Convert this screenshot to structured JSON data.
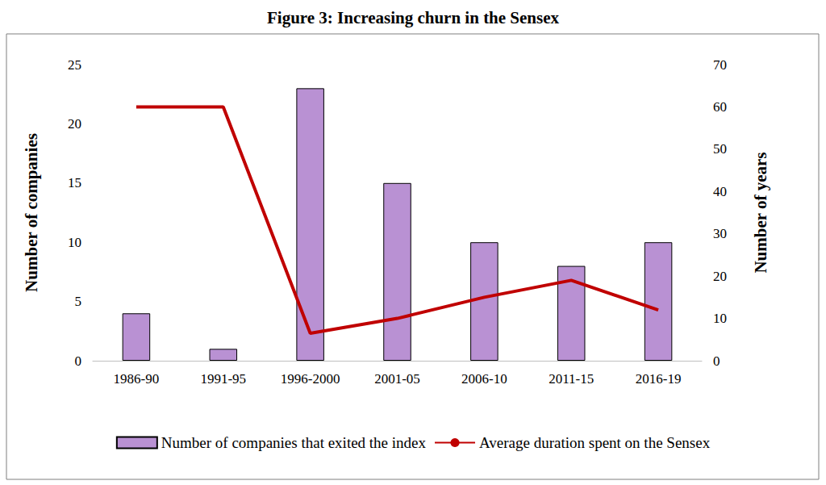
{
  "chart_data": {
    "type": "bar",
    "title": "Figure 3: Increasing churn in the Sensex",
    "categories": [
      "1986-90",
      "1991-95",
      "1996-2000",
      "2001-05",
      "2006-10",
      "2011-15",
      "2016-19"
    ],
    "series": [
      {
        "name": "Number of companies that exited the index",
        "type": "bar",
        "color": "#b991d3",
        "values": [
          4,
          1,
          23,
          15,
          10,
          8,
          10
        ]
      },
      {
        "name": "Average duration spent on the Sensex",
        "type": "line",
        "color": "#c00000",
        "axis": "y2",
        "values": [
          60,
          60,
          6.5,
          10,
          15,
          19,
          12
        ]
      }
    ],
    "y_label": "Number of companies",
    "y2_label": "Number of years",
    "ylim": [
      0,
      25
    ],
    "yticks": [
      0,
      5,
      10,
      15,
      20,
      25
    ],
    "y2lim": [
      0,
      70
    ],
    "y2ticks": [
      0,
      10,
      20,
      30,
      40,
      50,
      60,
      70
    ],
    "grid": false,
    "legend": "bottom"
  }
}
